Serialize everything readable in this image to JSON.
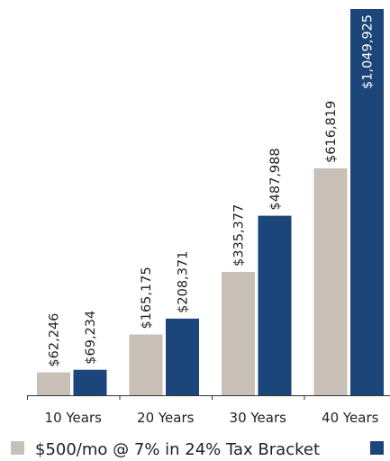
{
  "chart_data": {
    "type": "bar",
    "categories": [
      "10 Years",
      "20 Years",
      "30 Years",
      "40 Years"
    ],
    "series": [
      {
        "name": "$500/mo @ 7% in 24% Tax Bracket",
        "color": "#c8c0b7",
        "values": [
          62246,
          165175,
          335377,
          616819
        ],
        "labels": [
          "$62,246",
          "$165,175",
          "$335,377",
          "$616,819"
        ]
      },
      {
        "color": "#1c4579",
        "values": [
          69234,
          208371,
          487988,
          1049925
        ],
        "labels": [
          "$69,234",
          "$208,371",
          "$487,988",
          "$1,049,925"
        ]
      }
    ],
    "ylim": [
      0,
      1049925
    ],
    "grid": false,
    "legend": "bottom"
  }
}
